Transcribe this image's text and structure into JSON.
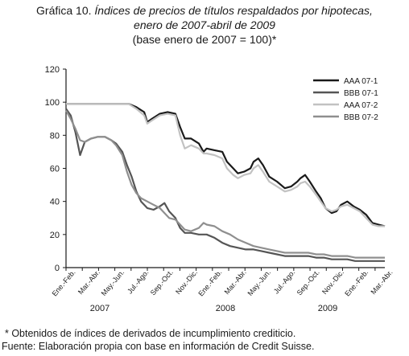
{
  "title": {
    "line1_prefix": "Gráfica 10.",
    "line1_italic": "Índices de precios de títulos respaldados por hipotecas,",
    "line2": "enero de 2007-abril de 2009",
    "line3": "(base enero de 2007 = 100)*"
  },
  "footnotes": {
    "note": "* Obtenidos de índices de derivados de incumplimiento crediticio.",
    "source": "Fuente: Elaboración propia con base en información de Credit Suisse."
  },
  "chart_data": {
    "type": "line",
    "ylim": [
      0,
      120
    ],
    "yticks": [
      "0",
      "20",
      "40",
      "60",
      "80",
      "100",
      "120"
    ],
    "grid": false,
    "legend_position": "top-right",
    "x_tick_labels": [
      "Ene.-Feb.",
      "Mar.-Abr.",
      "May.-Jun.",
      "Jul.-Ago.",
      "Sep.-Oct.",
      "Nov.-Dic.",
      "Ene.-Feb.",
      "Mar.-Abr.",
      "May.-Jun.",
      "Jul.-Ago.",
      "Sep.-Oct.",
      "Nov.-Dic.",
      "Ene.-Feb.",
      "Mar.-Abr."
    ],
    "year_labels": [
      "2007",
      "2008",
      "2009"
    ],
    "x_range_months": [
      0,
      16
    ],
    "series": [
      {
        "name": "AAA 07-1",
        "color": "#1a1a1a",
        "points": [
          [
            0,
            99
          ],
          [
            1,
            99
          ],
          [
            2,
            99
          ],
          [
            3,
            99
          ],
          [
            4,
            99
          ],
          [
            4.5,
            97
          ],
          [
            5,
            94
          ],
          [
            5.2,
            88
          ],
          [
            5.5,
            90
          ],
          [
            6,
            93
          ],
          [
            6.5,
            94
          ],
          [
            7,
            93
          ],
          [
            7.3,
            85
          ],
          [
            7.6,
            78
          ],
          [
            8,
            78
          ],
          [
            8.5,
            75
          ],
          [
            8.8,
            70
          ],
          [
            9,
            72
          ],
          [
            9.5,
            71
          ],
          [
            10,
            70
          ],
          [
            10.3,
            64
          ],
          [
            10.7,
            60
          ],
          [
            11,
            57
          ],
          [
            11.4,
            58
          ],
          [
            11.8,
            60
          ],
          [
            12,
            64
          ],
          [
            12.3,
            66
          ],
          [
            12.6,
            62
          ],
          [
            13,
            55
          ],
          [
            13.5,
            52
          ],
          [
            14,
            48
          ],
          [
            14.4,
            49
          ],
          [
            14.8,
            52
          ],
          [
            15,
            54
          ],
          [
            15.3,
            56
          ],
          [
            15.6,
            52
          ],
          [
            16,
            46
          ],
          [
            16.3,
            42
          ],
          [
            16.6,
            36
          ],
          [
            17,
            33
          ],
          [
            17.3,
            34
          ],
          [
            17.6,
            38
          ],
          [
            18,
            40
          ],
          [
            18.4,
            37
          ],
          [
            18.8,
            35
          ],
          [
            19.2,
            32
          ],
          [
            19.6,
            27
          ],
          [
            20,
            26
          ],
          [
            20.4,
            25
          ]
        ]
      },
      {
        "name": "BBB 07-1",
        "color": "#555555",
        "points": [
          [
            0,
            96
          ],
          [
            0.3,
            92
          ],
          [
            0.6,
            82
          ],
          [
            0.9,
            68
          ],
          [
            1.2,
            76
          ],
          [
            1.6,
            78
          ],
          [
            2,
            79
          ],
          [
            2.5,
            79
          ],
          [
            2.9,
            77
          ],
          [
            3.2,
            75
          ],
          [
            3.6,
            70
          ],
          [
            3.9,
            62
          ],
          [
            4.2,
            55
          ],
          [
            4.5,
            46
          ],
          [
            4.8,
            40
          ],
          [
            5.2,
            36
          ],
          [
            5.6,
            35
          ],
          [
            6,
            37
          ],
          [
            6.3,
            39
          ],
          [
            6.6,
            34
          ],
          [
            7,
            30
          ],
          [
            7.3,
            24
          ],
          [
            7.6,
            21
          ],
          [
            8,
            21
          ],
          [
            8.5,
            20
          ],
          [
            9,
            20
          ],
          [
            9.5,
            18
          ],
          [
            10,
            15
          ],
          [
            10.5,
            13
          ],
          [
            11,
            12
          ],
          [
            11.5,
            11
          ],
          [
            12,
            11
          ],
          [
            12.5,
            10
          ],
          [
            13,
            9
          ],
          [
            13.5,
            8
          ],
          [
            14,
            7
          ],
          [
            14.5,
            7
          ],
          [
            15,
            7
          ],
          [
            15.5,
            7
          ],
          [
            16,
            6
          ],
          [
            16.5,
            6
          ],
          [
            17,
            5
          ],
          [
            17.5,
            5
          ],
          [
            18,
            5
          ],
          [
            18.5,
            4
          ],
          [
            19,
            4
          ],
          [
            19.5,
            4
          ],
          [
            20,
            4
          ],
          [
            20.4,
            4
          ]
        ]
      },
      {
        "name": "AAA 07-2",
        "color": "#c2c2c2",
        "points": [
          [
            0,
            99
          ],
          [
            1,
            99
          ],
          [
            2,
            99
          ],
          [
            3,
            99
          ],
          [
            4,
            99
          ],
          [
            4.5,
            96
          ],
          [
            5,
            92
          ],
          [
            5.2,
            87
          ],
          [
            5.5,
            89
          ],
          [
            6,
            92
          ],
          [
            6.5,
            93
          ],
          [
            7,
            92
          ],
          [
            7.3,
            80
          ],
          [
            7.6,
            72
          ],
          [
            8,
            74
          ],
          [
            8.5,
            72
          ],
          [
            8.8,
            69
          ],
          [
            9,
            69
          ],
          [
            9.5,
            68
          ],
          [
            10,
            66
          ],
          [
            10.3,
            60
          ],
          [
            10.7,
            56
          ],
          [
            11,
            54
          ],
          [
            11.4,
            56
          ],
          [
            11.8,
            57
          ],
          [
            12,
            60
          ],
          [
            12.3,
            62
          ],
          [
            12.6,
            58
          ],
          [
            13,
            52
          ],
          [
            13.5,
            49
          ],
          [
            14,
            46
          ],
          [
            14.4,
            47
          ],
          [
            14.8,
            49
          ],
          [
            15,
            51
          ],
          [
            15.3,
            52
          ],
          [
            15.6,
            49
          ],
          [
            16,
            44
          ],
          [
            16.3,
            40
          ],
          [
            16.6,
            36
          ],
          [
            17,
            34
          ],
          [
            17.3,
            35
          ],
          [
            17.6,
            37
          ],
          [
            18,
            38
          ],
          [
            18.4,
            36
          ],
          [
            18.8,
            34
          ],
          [
            19.2,
            30
          ],
          [
            19.6,
            26
          ],
          [
            20,
            25
          ],
          [
            20.4,
            25
          ]
        ]
      },
      {
        "name": "BBB 07-2",
        "color": "#8f8f8f",
        "points": [
          [
            0,
            95
          ],
          [
            0.3,
            90
          ],
          [
            0.6,
            84
          ],
          [
            0.9,
            77
          ],
          [
            1.2,
            76
          ],
          [
            1.6,
            78
          ],
          [
            2,
            79
          ],
          [
            2.5,
            79
          ],
          [
            2.9,
            77
          ],
          [
            3.2,
            74
          ],
          [
            3.6,
            68
          ],
          [
            3.9,
            58
          ],
          [
            4.2,
            50
          ],
          [
            4.5,
            45
          ],
          [
            4.8,
            42
          ],
          [
            5.2,
            40
          ],
          [
            5.6,
            38
          ],
          [
            6,
            36
          ],
          [
            6.3,
            33
          ],
          [
            6.6,
            30
          ],
          [
            7,
            29
          ],
          [
            7.3,
            26
          ],
          [
            7.6,
            23
          ],
          [
            8,
            22
          ],
          [
            8.5,
            24
          ],
          [
            8.8,
            27
          ],
          [
            9,
            26
          ],
          [
            9.5,
            25
          ],
          [
            10,
            22
          ],
          [
            10.5,
            20
          ],
          [
            11,
            17
          ],
          [
            11.5,
            15
          ],
          [
            12,
            13
          ],
          [
            12.5,
            12
          ],
          [
            13,
            11
          ],
          [
            13.5,
            10
          ],
          [
            14,
            9
          ],
          [
            14.5,
            9
          ],
          [
            15,
            9
          ],
          [
            15.5,
            9
          ],
          [
            16,
            8
          ],
          [
            16.5,
            8
          ],
          [
            17,
            7
          ],
          [
            17.5,
            7
          ],
          [
            18,
            7
          ],
          [
            18.5,
            6
          ],
          [
            19,
            6
          ],
          [
            19.5,
            6
          ],
          [
            20,
            6
          ],
          [
            20.4,
            6
          ]
        ]
      }
    ]
  }
}
